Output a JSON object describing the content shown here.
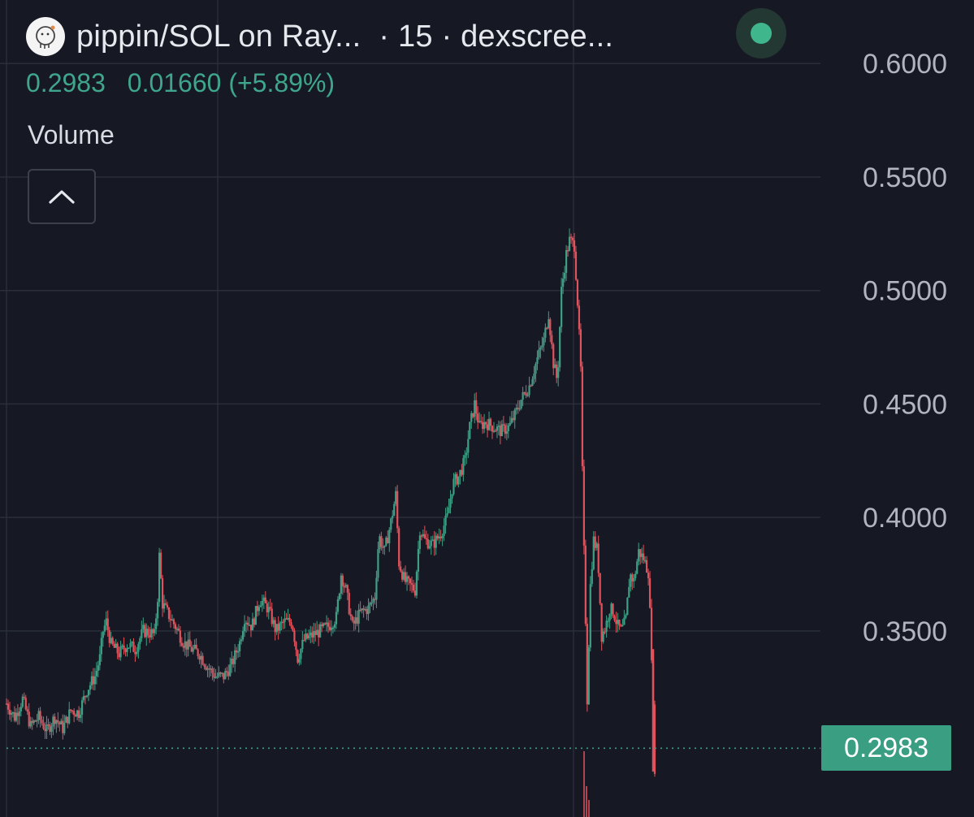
{
  "header": {
    "title": "pippin/SOL on Ray...",
    "interval": "· 15 · dexscree...",
    "avatar_icon": "pippin-logo-icon",
    "status_icon": "live-status-dot-icon"
  },
  "legend": {
    "price": "0.2983",
    "change": "0.01660 (+5.89%)",
    "volume_label": "Volume",
    "collapse_icon": "chevron-up-icon"
  },
  "price_tag": "0.2983",
  "colors": {
    "background": "#161924",
    "grid": "#2a2e39",
    "up": "#3f9f85",
    "down": "#e0525c",
    "price_line": "#3a9e83",
    "axis_text": "#b2b5be"
  },
  "chart_data": {
    "type": "candlestick",
    "ylim": [
      0.268,
      0.628
    ],
    "yticks": [
      0.35,
      0.4,
      0.45,
      0.5,
      0.55,
      0.6
    ],
    "ytick_labels": [
      "0.3500",
      "0.4000",
      "0.4500",
      "0.5000",
      "0.5500",
      "0.6000"
    ],
    "last_price": 0.2983,
    "path": [
      [
        0,
        0.318
      ],
      [
        10,
        0.312
      ],
      [
        20,
        0.32
      ],
      [
        30,
        0.308
      ],
      [
        40,
        0.312
      ],
      [
        50,
        0.306
      ],
      [
        60,
        0.312
      ],
      [
        70,
        0.307
      ],
      [
        80,
        0.315
      ],
      [
        90,
        0.314
      ],
      [
        100,
        0.324
      ],
      [
        110,
        0.33
      ],
      [
        116,
        0.338
      ],
      [
        120,
        0.35
      ],
      [
        124,
        0.354
      ],
      [
        130,
        0.344
      ],
      [
        140,
        0.34
      ],
      [
        150,
        0.344
      ],
      [
        160,
        0.342
      ],
      [
        170,
        0.35
      ],
      [
        180,
        0.349
      ],
      [
        184,
        0.348
      ],
      [
        188,
        0.365
      ],
      [
        190,
        0.383
      ],
      [
        194,
        0.362
      ],
      [
        200,
        0.358
      ],
      [
        210,
        0.352
      ],
      [
        220,
        0.345
      ],
      [
        230,
        0.342
      ],
      [
        240,
        0.34
      ],
      [
        250,
        0.334
      ],
      [
        260,
        0.33
      ],
      [
        270,
        0.33
      ],
      [
        280,
        0.335
      ],
      [
        290,
        0.345
      ],
      [
        296,
        0.356
      ],
      [
        305,
        0.352
      ],
      [
        315,
        0.364
      ],
      [
        325,
        0.36
      ],
      [
        335,
        0.35
      ],
      [
        345,
        0.354
      ],
      [
        355,
        0.354
      ],
      [
        362,
        0.338
      ],
      [
        370,
        0.346
      ],
      [
        380,
        0.348
      ],
      [
        390,
        0.35
      ],
      [
        400,
        0.352
      ],
      [
        410,
        0.356
      ],
      [
        416,
        0.375
      ],
      [
        422,
        0.368
      ],
      [
        430,
        0.352
      ],
      [
        440,
        0.358
      ],
      [
        450,
        0.36
      ],
      [
        458,
        0.365
      ],
      [
        463,
        0.392
      ],
      [
        470,
        0.385
      ],
      [
        478,
        0.398
      ],
      [
        484,
        0.41
      ],
      [
        488,
        0.38
      ],
      [
        495,
        0.372
      ],
      [
        502,
        0.37
      ],
      [
        508,
        0.368
      ],
      [
        514,
        0.395
      ],
      [
        520,
        0.39
      ],
      [
        530,
        0.388
      ],
      [
        540,
        0.393
      ],
      [
        548,
        0.4
      ],
      [
        555,
        0.415
      ],
      [
        562,
        0.418
      ],
      [
        570,
        0.425
      ],
      [
        576,
        0.44
      ],
      [
        582,
        0.45
      ],
      [
        588,
        0.44
      ],
      [
        595,
        0.442
      ],
      [
        605,
        0.44
      ],
      [
        615,
        0.438
      ],
      [
        625,
        0.44
      ],
      [
        632,
        0.445
      ],
      [
        640,
        0.452
      ],
      [
        650,
        0.458
      ],
      [
        660,
        0.47
      ],
      [
        668,
        0.478
      ],
      [
        674,
        0.49
      ],
      [
        680,
        0.468
      ],
      [
        685,
        0.46
      ],
      [
        690,
        0.5
      ],
      [
        696,
        0.516
      ],
      [
        700,
        0.522
      ],
      [
        706,
        0.52
      ],
      [
        710,
        0.495
      ],
      [
        714,
        0.465
      ],
      [
        716,
        0.42
      ],
      [
        718,
        0.385
      ],
      [
        720,
        0.355
      ],
      [
        722,
        0.32
      ],
      [
        726,
        0.37
      ],
      [
        730,
        0.39
      ],
      [
        735,
        0.385
      ],
      [
        740,
        0.348
      ],
      [
        745,
        0.352
      ],
      [
        750,
        0.36
      ],
      [
        755,
        0.358
      ],
      [
        760,
        0.352
      ],
      [
        765,
        0.35
      ],
      [
        770,
        0.355
      ],
      [
        775,
        0.375
      ],
      [
        780,
        0.372
      ],
      [
        786,
        0.385
      ],
      [
        792,
        0.382
      ],
      [
        798,
        0.376
      ],
      [
        802,
        0.34
      ],
      [
        806,
        0.29
      ]
    ]
  }
}
